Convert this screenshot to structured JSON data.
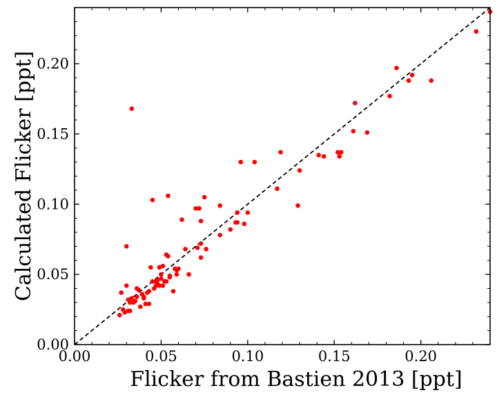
{
  "chart_data": {
    "type": "scatter",
    "title": "",
    "xlabel": "Flicker from Bastien 2013 [ppt]",
    "ylabel": "Calculated Flicker [ppt]",
    "xlim": [
      0.0,
      0.24
    ],
    "ylim": [
      0.0,
      0.24
    ],
    "xticks": [
      "0.00",
      "0.05",
      "0.10",
      "0.15",
      "0.20"
    ],
    "yticks": [
      "0.00",
      "0.05",
      "0.10",
      "0.15",
      "0.20"
    ],
    "minor_tick_step": 0.01,
    "grid": false,
    "legend": "none",
    "reference_line": {
      "type": "y=x",
      "style": "dashed",
      "color": "#000000"
    },
    "marker_color": "#ff0000",
    "points": [
      [
        0.026,
        0.021
      ],
      [
        0.027,
        0.037
      ],
      [
        0.028,
        0.025
      ],
      [
        0.029,
        0.023
      ],
      [
        0.03,
        0.07
      ],
      [
        0.03,
        0.042
      ],
      [
        0.031,
        0.024
      ],
      [
        0.031,
        0.032
      ],
      [
        0.032,
        0.024
      ],
      [
        0.032,
        0.03
      ],
      [
        0.033,
        0.168
      ],
      [
        0.033,
        0.033
      ],
      [
        0.034,
        0.03
      ],
      [
        0.035,
        0.031
      ],
      [
        0.036,
        0.034
      ],
      [
        0.036,
        0.04
      ],
      [
        0.037,
        0.039
      ],
      [
        0.038,
        0.027
      ],
      [
        0.039,
        0.036
      ],
      [
        0.04,
        0.034
      ],
      [
        0.04,
        0.033
      ],
      [
        0.041,
        0.029
      ],
      [
        0.042,
        0.037
      ],
      [
        0.043,
        0.029
      ],
      [
        0.043,
        0.038
      ],
      [
        0.044,
        0.055
      ],
      [
        0.045,
        0.103
      ],
      [
        0.045,
        0.045
      ],
      [
        0.046,
        0.04
      ],
      [
        0.047,
        0.045
      ],
      [
        0.047,
        0.042
      ],
      [
        0.048,
        0.046
      ],
      [
        0.048,
        0.043
      ],
      [
        0.049,
        0.042
      ],
      [
        0.049,
        0.055
      ],
      [
        0.05,
        0.05
      ],
      [
        0.05,
        0.047
      ],
      [
        0.051,
        0.056
      ],
      [
        0.051,
        0.042
      ],
      [
        0.052,
        0.045
      ],
      [
        0.053,
        0.064
      ],
      [
        0.053,
        0.045
      ],
      [
        0.054,
        0.106
      ],
      [
        0.054,
        0.063
      ],
      [
        0.055,
        0.048
      ],
      [
        0.055,
        0.049
      ],
      [
        0.057,
        0.038
      ],
      [
        0.058,
        0.054
      ],
      [
        0.059,
        0.053
      ],
      [
        0.059,
        0.05
      ],
      [
        0.06,
        0.054
      ],
      [
        0.062,
        0.089
      ],
      [
        0.064,
        0.068
      ],
      [
        0.066,
        0.05
      ],
      [
        0.07,
        0.097
      ],
      [
        0.071,
        0.069
      ],
      [
        0.072,
        0.097
      ],
      [
        0.073,
        0.072
      ],
      [
        0.073,
        0.088
      ],
      [
        0.073,
        0.062
      ],
      [
        0.075,
        0.105
      ],
      [
        0.076,
        0.068
      ],
      [
        0.084,
        0.078
      ],
      [
        0.084,
        0.099
      ],
      [
        0.09,
        0.082
      ],
      [
        0.093,
        0.087
      ],
      [
        0.094,
        0.094
      ],
      [
        0.094,
        0.087
      ],
      [
        0.096,
        0.13
      ],
      [
        0.098,
        0.086
      ],
      [
        0.1,
        0.094
      ],
      [
        0.104,
        0.13
      ],
      [
        0.117,
        0.111
      ],
      [
        0.119,
        0.137
      ],
      [
        0.129,
        0.099
      ],
      [
        0.13,
        0.124
      ],
      [
        0.141,
        0.135
      ],
      [
        0.144,
        0.134
      ],
      [
        0.152,
        0.137
      ],
      [
        0.153,
        0.134
      ],
      [
        0.154,
        0.137
      ],
      [
        0.161,
        0.152
      ],
      [
        0.162,
        0.172
      ],
      [
        0.169,
        0.151
      ],
      [
        0.182,
        0.177
      ],
      [
        0.186,
        0.197
      ],
      [
        0.193,
        0.188
      ],
      [
        0.195,
        0.192
      ],
      [
        0.206,
        0.188
      ],
      [
        0.232,
        0.223
      ],
      [
        0.24,
        0.237
      ]
    ]
  }
}
